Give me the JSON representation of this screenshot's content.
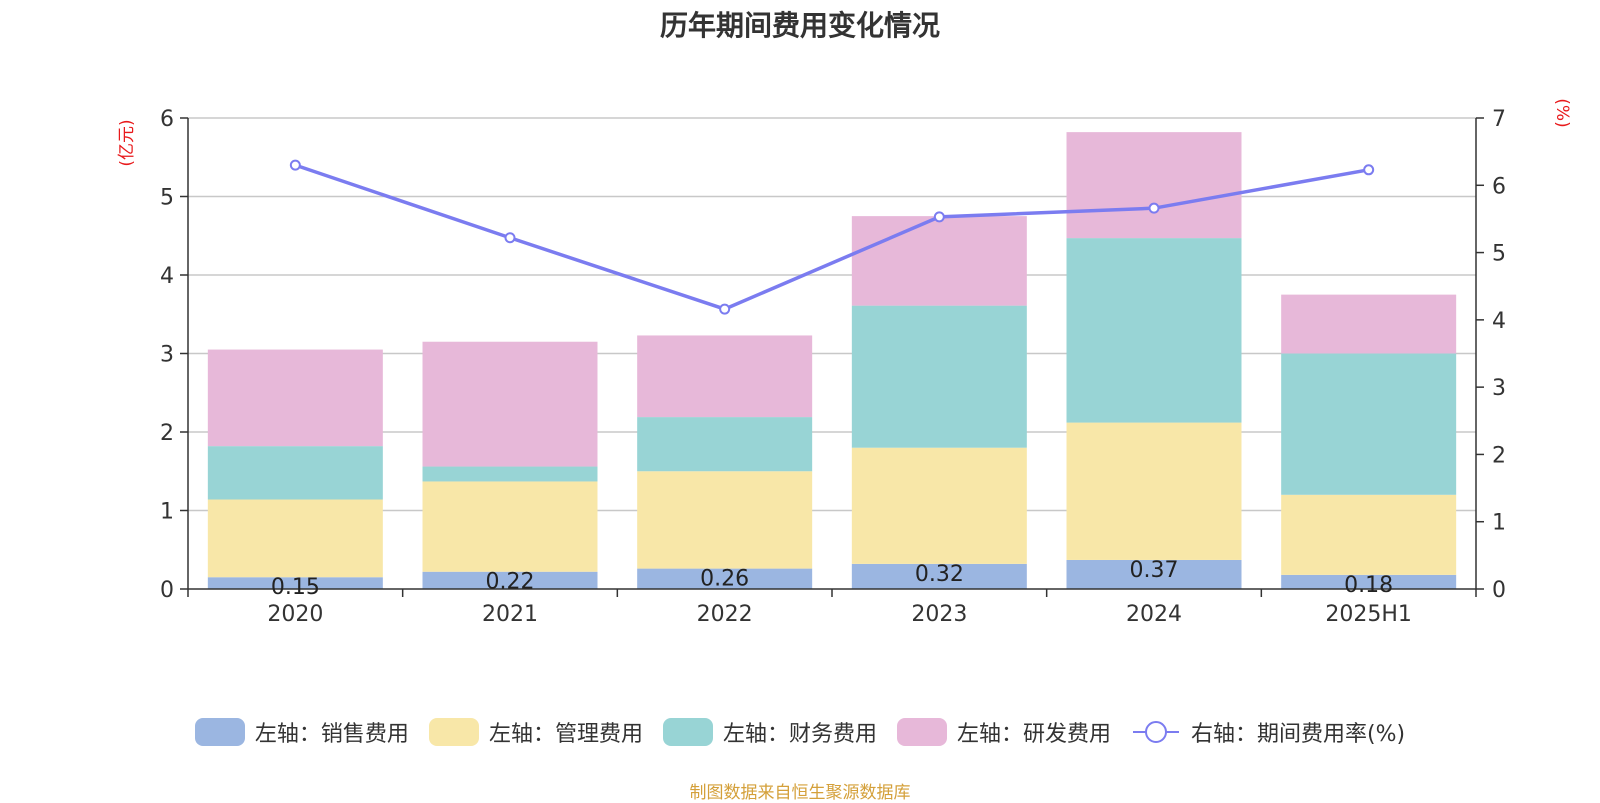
{
  "title": "历年期间费用变化情况",
  "source": "制图数据来自恒生聚源数据库",
  "chart_data": {
    "type": "bar",
    "stacked": true,
    "categories": [
      "2020",
      "2021",
      "2022",
      "2023",
      "2024",
      "2025H1"
    ],
    "left_axis": {
      "unit": "(亿元)",
      "ylim": [
        0,
        6
      ],
      "ticks": [
        "0",
        "1",
        "2",
        "3",
        "4",
        "5",
        "6"
      ]
    },
    "right_axis": {
      "unit": "(%)",
      "ylim": [
        0,
        7
      ],
      "ticks": [
        "0",
        "1",
        "2",
        "3",
        "4",
        "5",
        "6",
        "7"
      ]
    },
    "series": [
      {
        "name": "左轴：销售费用",
        "color": "#9bb6e1",
        "axis": "left",
        "values": [
          0.15,
          0.22,
          0.26,
          0.32,
          0.37,
          0.18
        ],
        "labels": [
          "0.15",
          "0.22",
          "0.26",
          "0.32",
          "0.37",
          "0.18"
        ]
      },
      {
        "name": "左轴：管理费用",
        "color": "#f8e7a8",
        "axis": "left",
        "values": [
          0.99,
          1.15,
          1.24,
          1.48,
          1.75,
          1.02
        ]
      },
      {
        "name": "左轴：财务费用",
        "color": "#98d4d5",
        "axis": "left",
        "values": [
          0.68,
          0.19,
          0.69,
          1.81,
          2.35,
          1.8
        ]
      },
      {
        "name": "左轴：研发费用",
        "color": "#e7b8d9",
        "axis": "left",
        "values": [
          1.23,
          1.59,
          1.04,
          1.14,
          1.35,
          0.75
        ]
      },
      {
        "name": "右轴：期间费用率(%)",
        "color": "#7b7cf0",
        "axis": "right",
        "type": "line",
        "values": [
          6.3,
          5.22,
          4.16,
          5.53,
          5.66,
          6.23
        ]
      }
    ],
    "grid": true,
    "legend_position": "bottom"
  }
}
